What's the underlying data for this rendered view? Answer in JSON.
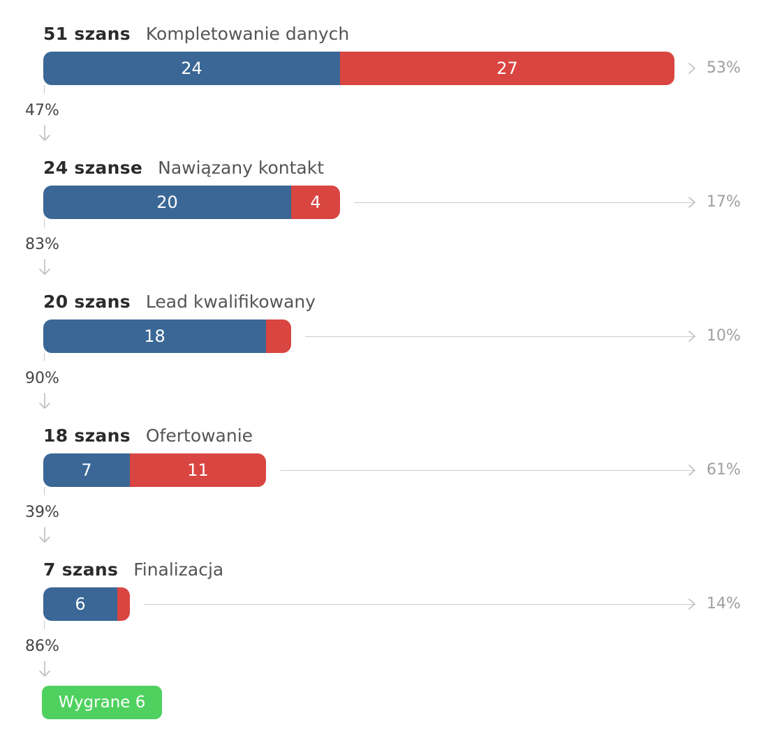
{
  "chart_data": {
    "type": "funnel",
    "stages": [
      {
        "count_label": "51 szans",
        "name": "Kompletowanie danych",
        "total": 51,
        "passed": 24,
        "lost": 27,
        "passed_label": "24",
        "lost_label": "27",
        "loss_pct": "53%",
        "conv_pct": "47%"
      },
      {
        "count_label": "24 szanse",
        "name": "Nawiązany kontakt",
        "total": 24,
        "passed": 20,
        "lost": 4,
        "passed_label": "20",
        "lost_label": "4",
        "loss_pct": "17%",
        "conv_pct": "83%"
      },
      {
        "count_label": "20 szans",
        "name": "Lead kwalifikowany",
        "total": 20,
        "passed": 18,
        "lost": 2,
        "passed_label": "18",
        "lost_label": "",
        "loss_pct": "10%",
        "conv_pct": "90%"
      },
      {
        "count_label": "18 szans",
        "name": "Ofertowanie",
        "total": 18,
        "passed": 7,
        "lost": 11,
        "passed_label": "7",
        "lost_label": "11",
        "loss_pct": "61%",
        "conv_pct": "39%"
      },
      {
        "count_label": "7 szans",
        "name": "Finalizacja",
        "total": 7,
        "passed": 6,
        "lost": 1,
        "passed_label": "6",
        "lost_label": "",
        "loss_pct": "14%",
        "conv_pct": "86%"
      }
    ],
    "won_label": "Wygrane 6",
    "won_count": 6,
    "colors": {
      "passed": "#3a6795",
      "lost": "#d94541",
      "won": "#4fd15f"
    }
  }
}
